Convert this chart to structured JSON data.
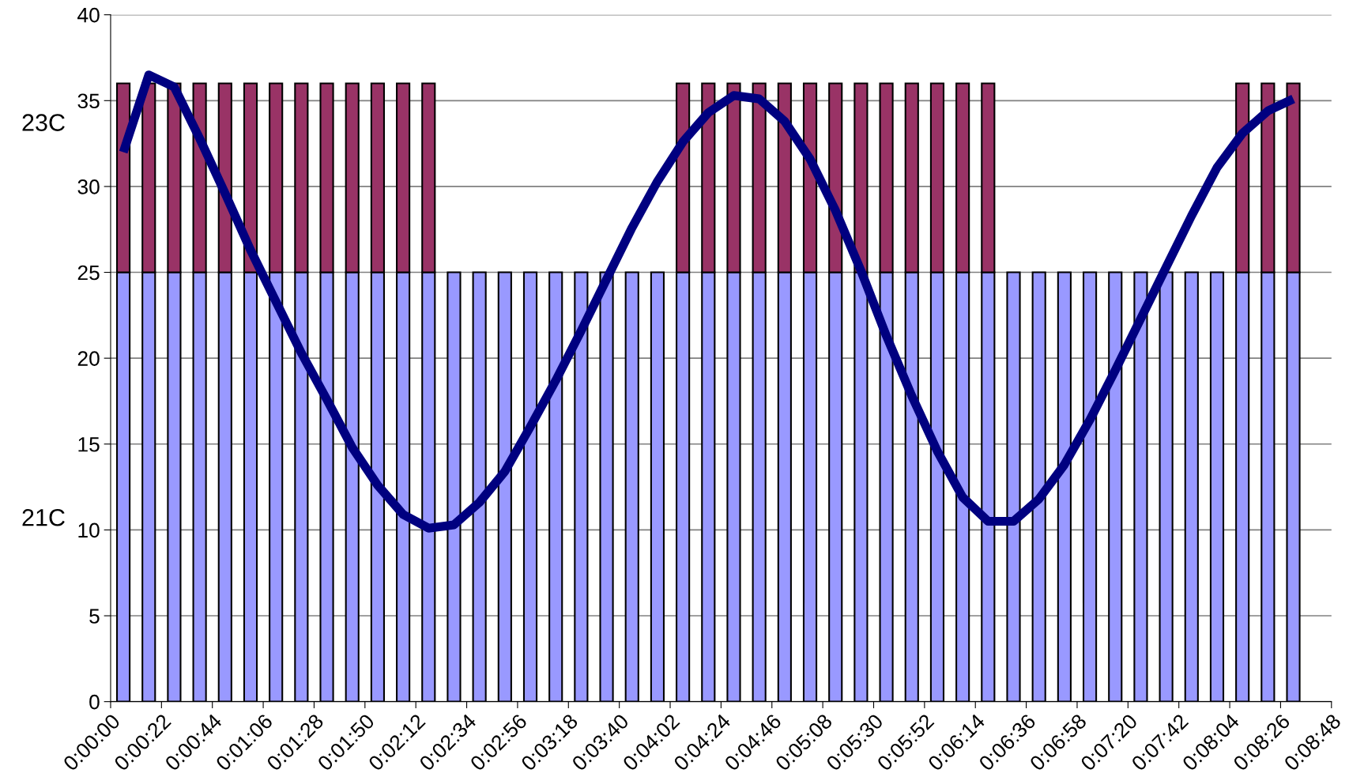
{
  "chart_data": {
    "type": "bar",
    "stacked": true,
    "x": [
      5.5,
      16.5,
      27.5,
      38.5,
      49.5,
      60.5,
      71.5,
      82.5,
      93.5,
      104.5,
      115.5,
      126.5,
      137.5,
      148.5,
      159.5,
      170.5,
      181.5,
      192.5,
      203.5,
      214.5,
      225.5,
      236.5,
      247.5,
      258.5,
      269.5,
      280.5,
      291.5,
      302.5,
      313.5,
      324.5,
      335.5,
      346.5,
      357.5,
      368.5,
      379.5,
      390.5,
      401.5,
      412.5,
      423.5,
      434.5,
      445.5,
      456.5,
      467.5,
      478.5,
      489.5,
      500.5,
      511.5
    ],
    "series": [
      {
        "color": "#9999ff",
        "values": [
          25,
          25,
          25,
          25,
          25,
          25,
          25,
          25,
          25,
          25,
          25,
          25,
          25,
          25,
          25,
          25,
          25,
          25,
          25,
          25,
          25,
          25,
          25,
          25,
          25,
          25,
          25,
          25,
          25,
          25,
          25,
          25,
          25,
          25,
          25,
          25,
          25,
          25,
          25,
          25,
          25,
          25,
          25,
          25,
          25,
          25,
          25
        ]
      },
      {
        "color": "#993366",
        "values": [
          11,
          11,
          11,
          11,
          11,
          11,
          11,
          11,
          11,
          11,
          11,
          11,
          11,
          null,
          null,
          null,
          null,
          null,
          null,
          null,
          null,
          null,
          11,
          11,
          11,
          11,
          11,
          11,
          11,
          11,
          11,
          11,
          11,
          11,
          11,
          null,
          null,
          null,
          null,
          null,
          null,
          null,
          null,
          null,
          11,
          11,
          11
        ]
      },
      {
        "type": "line",
        "color": "#000080",
        "values": [
          32,
          36.5,
          35.8,
          32.8,
          29.6,
          26.3,
          23.3,
          20.3,
          17.6,
          14.8,
          12.6,
          10.9,
          10.1,
          10.3,
          11.6,
          13.4,
          16.0,
          18.7,
          21.6,
          24.6,
          27.6,
          30.3,
          32.6,
          34.3,
          35.3,
          35.1,
          33.8,
          31.6,
          28.6,
          25.1,
          21.3,
          17.8,
          14.6,
          11.9,
          10.5,
          10.5,
          11.8,
          13.8,
          16.4,
          19.3,
          22.3,
          25.3,
          28.3,
          31.1,
          33.1,
          34.4,
          35.1
        ]
      }
    ],
    "xlim": [
      0,
      528
    ],
    "xticks": [
      {
        "value": 0,
        "label": "0:00:00"
      },
      {
        "value": 22,
        "label": "0:00:22"
      },
      {
        "value": 44,
        "label": "0:00:44"
      },
      {
        "value": 66,
        "label": "0:01:06"
      },
      {
        "value": 88,
        "label": "0:01:28"
      },
      {
        "value": 110,
        "label": "0:01:50"
      },
      {
        "value": 132,
        "label": "0:02:12"
      },
      {
        "value": 154,
        "label": "0:02:34"
      },
      {
        "value": 176,
        "label": "0:02:56"
      },
      {
        "value": 198,
        "label": "0:03:18"
      },
      {
        "value": 220,
        "label": "0:03:40"
      },
      {
        "value": 242,
        "label": "0:04:02"
      },
      {
        "value": 264,
        "label": "0:04:24"
      },
      {
        "value": 286,
        "label": "0:04:46"
      },
      {
        "value": 308,
        "label": "0:05:08"
      },
      {
        "value": 330,
        "label": "0:05:30"
      },
      {
        "value": 352,
        "label": "0:05:52"
      },
      {
        "value": 374,
        "label": "0:06:14"
      },
      {
        "value": 396,
        "label": "0:06:36"
      },
      {
        "value": 418,
        "label": "0:06:58"
      },
      {
        "value": 440,
        "label": "0:07:20"
      },
      {
        "value": 462,
        "label": "0:07:42"
      },
      {
        "value": 484,
        "label": "0:08:04"
      },
      {
        "value": 506,
        "label": "0:08:26"
      },
      {
        "value": 528,
        "label": "0:08:48"
      }
    ],
    "ylim": [
      0,
      40
    ],
    "yticks": [
      0,
      5,
      10,
      15,
      20,
      25,
      30,
      35,
      40
    ],
    "grid": "y",
    "legend": false,
    "annotations": [
      "23C",
      "21C"
    ]
  }
}
